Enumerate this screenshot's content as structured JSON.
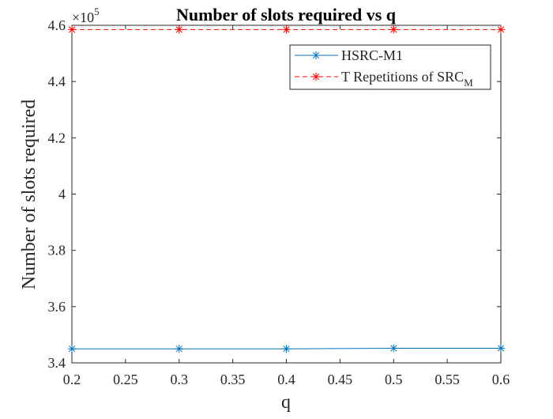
{
  "chart_data": {
    "type": "line",
    "title": "Number of slots required vs q",
    "xlabel": "q",
    "ylabel": "Number of slots required",
    "exponent_base": "×10",
    "exponent_power": "5",
    "xlim": [
      0.2,
      0.6
    ],
    "ylim": [
      340000,
      460000
    ],
    "xticks": [
      "0.2",
      "0.25",
      "0.3",
      "0.35",
      "0.4",
      "0.45",
      "0.5",
      "0.55",
      "0.6"
    ],
    "yticks": [
      "3.4",
      "3.6",
      "3.8",
      "4",
      "4.2",
      "4.4",
      "4.6"
    ],
    "grid": false,
    "legend_position": "top-right",
    "x": [
      0.2,
      0.3,
      0.4,
      0.5,
      0.6
    ],
    "series": [
      {
        "name": "HSRC-M1",
        "values": [
          345000,
          345000,
          345000,
          345200,
          345200
        ],
        "color": "#0072BD",
        "line": "solid",
        "marker": "*"
      },
      {
        "name": "T Repetitions of SRC",
        "name_subscript": "M",
        "values": [
          458500,
          458500,
          458500,
          458500,
          458500
        ],
        "color": "#FF0000",
        "line": "dashed",
        "marker": "*"
      }
    ]
  }
}
